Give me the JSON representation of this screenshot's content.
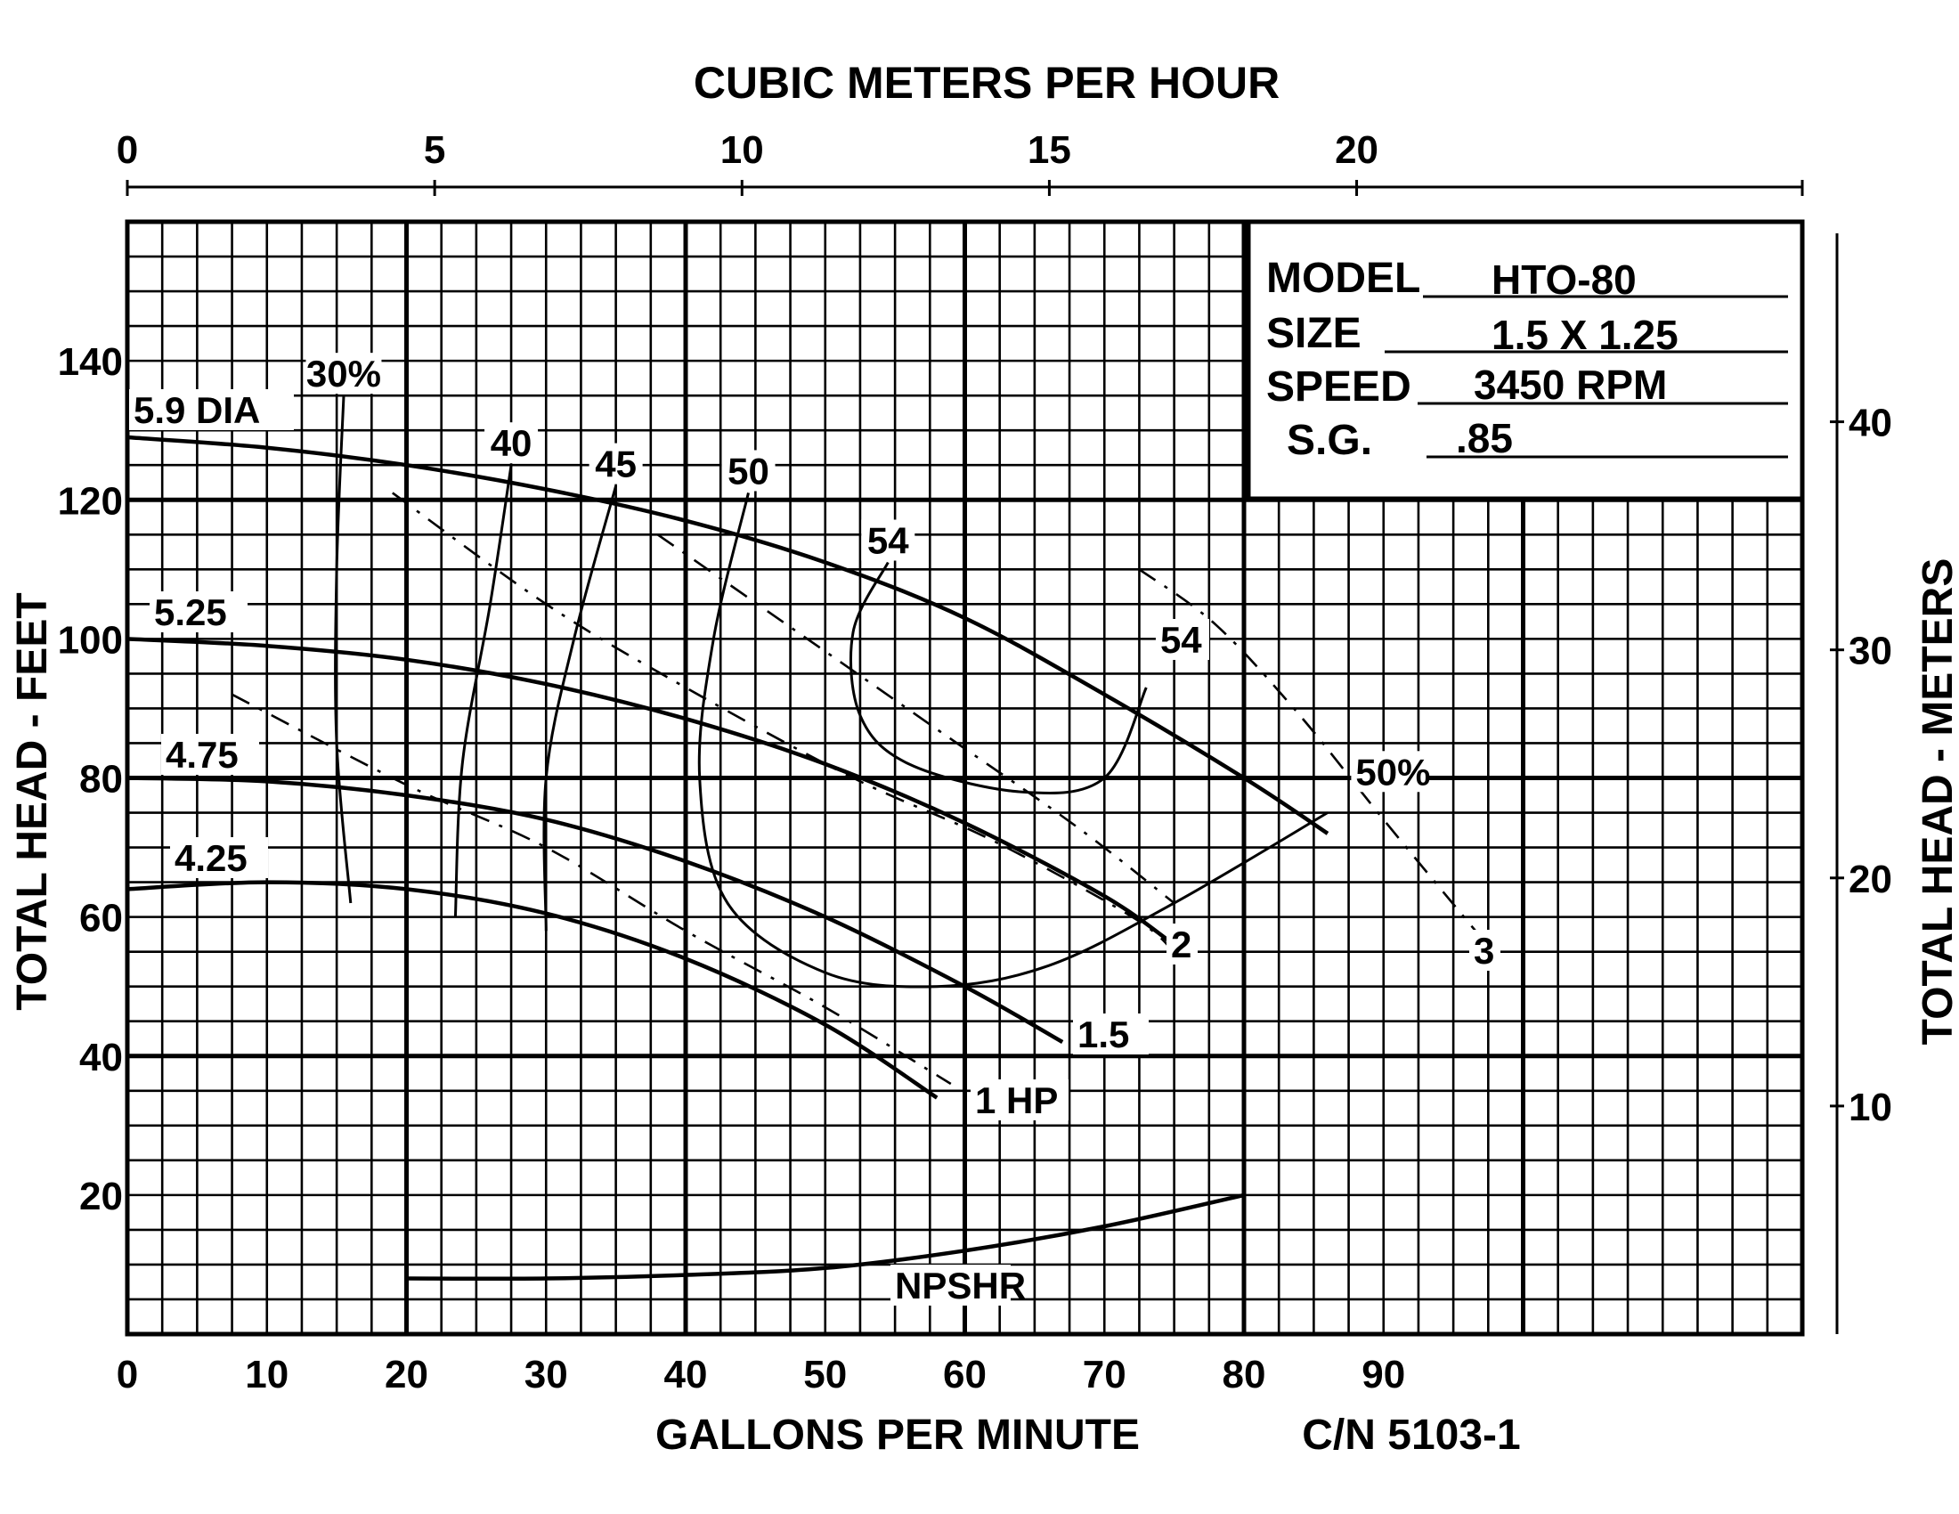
{
  "chart_data": {
    "type": "line",
    "title": "",
    "top_axis": {
      "label": "CUBIC METERS PER HOUR",
      "range": [
        0,
        27.25
      ],
      "ticks": [
        {
          "value": 0,
          "label": "0"
        },
        {
          "value": 5,
          "label": "5"
        },
        {
          "value": 10,
          "label": "10"
        },
        {
          "value": 15,
          "label": "15"
        },
        {
          "value": 20,
          "label": "20"
        }
      ]
    },
    "x_axis": {
      "label": "GALLONS PER MINUTE",
      "range": [
        0,
        120
      ],
      "ticks": [
        {
          "value": 0,
          "label": "0"
        },
        {
          "value": 10,
          "label": "10"
        },
        {
          "value": 20,
          "label": "20"
        },
        {
          "value": 30,
          "label": "30"
        },
        {
          "value": 40,
          "label": "40"
        },
        {
          "value": 50,
          "label": "50"
        },
        {
          "value": 60,
          "label": "60"
        },
        {
          "value": 70,
          "label": "70"
        },
        {
          "value": 80,
          "label": "80"
        },
        {
          "value": 90,
          "label": "90"
        }
      ]
    },
    "y_axis": {
      "label": "TOTAL HEAD - FEET",
      "range": [
        0,
        160
      ],
      "ticks": [
        {
          "value": 20,
          "label": "20"
        },
        {
          "value": 40,
          "label": "40"
        },
        {
          "value": 60,
          "label": "60"
        },
        {
          "value": 80,
          "label": "80"
        },
        {
          "value": 100,
          "label": "100"
        },
        {
          "value": 120,
          "label": "120"
        },
        {
          "value": 140,
          "label": "140"
        }
      ]
    },
    "right_axis": {
      "label": "TOTAL HEAD - METERS",
      "range": [
        0,
        48.77
      ],
      "ticks": [
        {
          "value": 10,
          "label": "10"
        },
        {
          "value": 20,
          "label": "20"
        },
        {
          "value": 30,
          "label": "30"
        },
        {
          "value": 40,
          "label": "40"
        }
      ]
    },
    "grid": true,
    "info_box": {
      "rows": [
        {
          "key": "MODEL",
          "value": "HTO-80"
        },
        {
          "key": "SIZE",
          "value": "1.5 X 1.25"
        },
        {
          "key": "SPEED",
          "value": "3450 RPM"
        },
        {
          "key": "S.G.",
          "value": ".85"
        }
      ]
    },
    "footer_code": "C/N 5103-1",
    "head_curves": [
      {
        "name": "5.9 DIA",
        "x": [
          0,
          10,
          20,
          30,
          40,
          50,
          60,
          70,
          80,
          86
        ],
        "y": [
          129,
          127.5,
          125,
          121.5,
          117,
          111,
          103,
          92,
          80,
          72
        ]
      },
      {
        "name": "5.25",
        "x": [
          0,
          10,
          20,
          30,
          40,
          50,
          60,
          70,
          75
        ],
        "y": [
          100,
          99,
          97,
          93.5,
          88.5,
          82,
          73.5,
          63,
          56
        ]
      },
      {
        "name": "4.75",
        "x": [
          0,
          10,
          20,
          30,
          40,
          50,
          60,
          67
        ],
        "y": [
          80,
          79.5,
          77.5,
          74,
          68,
          60,
          50,
          42
        ]
      },
      {
        "name": "4.25",
        "x": [
          0,
          10,
          20,
          30,
          40,
          50,
          58
        ],
        "y": [
          64,
          65,
          64,
          60.5,
          54,
          44.5,
          34
        ]
      }
    ],
    "efficiency_curves": [
      {
        "label": "30%",
        "x": [
          15.5,
          15,
          15,
          16
        ],
        "y": [
          135,
          110,
          85,
          62
        ]
      },
      {
        "label": "40",
        "x": [
          27.5,
          26,
          24,
          23.5
        ],
        "y": [
          125,
          105,
          82,
          60
        ]
      },
      {
        "label": "45",
        "x": [
          35,
          32,
          30,
          30
        ],
        "y": [
          122,
          100,
          80,
          58
        ]
      },
      {
        "label": "50",
        "x": [
          44.5,
          42,
          41,
          43,
          50,
          58,
          66,
          75,
          86
        ],
        "y": [
          121,
          100,
          80,
          62,
          52,
          50,
          53,
          62,
          75
        ]
      },
      {
        "label": "54",
        "x": [
          54.5,
          52,
          52.5,
          56,
          64,
          70,
          73
        ],
        "y": [
          111,
          101,
          89,
          82,
          78,
          80,
          93
        ]
      }
    ],
    "efficiency_labels": [
      {
        "text": "54",
        "x": 74,
        "y": 98
      },
      {
        "text": "50%",
        "x": 88,
        "y": 79
      }
    ],
    "horsepower_curves": [
      {
        "label": "3",
        "x": [
          72.5,
          78,
          84,
          90,
          97
        ],
        "y": [
          110,
          102,
          89,
          74,
          57
        ]
      },
      {
        "label": "2",
        "x": [
          19,
          30,
          40,
          52,
          62,
          72,
          75
        ],
        "y": [
          121,
          105,
          93,
          80,
          71,
          60,
          55
        ]
      },
      {
        "label": "1.5",
        "x": [
          38,
          48,
          58,
          68,
          75
        ],
        "y": [
          115,
          101,
          87,
          73,
          62
        ]
      },
      {
        "label": "1 HP",
        "x": [
          7.5,
          20,
          30,
          40,
          50,
          59
        ],
        "y": [
          92,
          79,
          70,
          58,
          47,
          36
        ]
      }
    ],
    "npshr": {
      "label": "NPSHR",
      "x": [
        20,
        30,
        40,
        50,
        60,
        70,
        80
      ],
      "y": [
        8,
        8,
        8.5,
        9.5,
        12,
        15.5,
        20
      ]
    }
  }
}
